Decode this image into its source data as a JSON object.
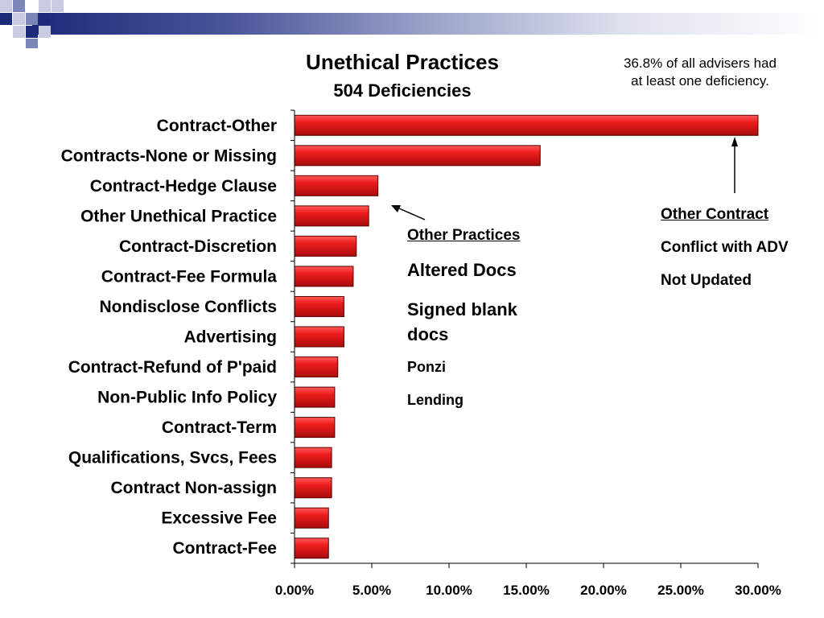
{
  "chart_data": {
    "type": "bar",
    "orientation": "horizontal",
    "title": "Unethical Practices",
    "subtitle": "504 Deficiencies",
    "categories": [
      "Contract-Other",
      "Contracts-None or Missing",
      "Contract-Hedge Clause",
      "Other Unethical Practice",
      "Contract-Discretion",
      "Contract-Fee Formula",
      "Nondisclose Conflicts",
      "Advertising",
      "Contract-Refund of P'paid",
      "Non-Public Info Policy",
      "Contract-Term",
      "Qualifications, Svcs, Fees",
      "Contract Non-assign",
      "Excessive Fee",
      "Contract-Fee"
    ],
    "values": [
      30.0,
      15.9,
      5.4,
      4.8,
      4.0,
      3.8,
      3.2,
      3.2,
      2.8,
      2.6,
      2.6,
      2.4,
      2.4,
      2.2,
      2.2
    ],
    "value_unit": "percent",
    "xlim": [
      0,
      30
    ],
    "xticks": [
      "0.00%",
      "5.00%",
      "10.00%",
      "15.00%",
      "20.00%",
      "25.00%",
      "30.00%"
    ],
    "grid": false,
    "bar_color": "#e8121b",
    "legend": "none"
  },
  "note": {
    "line1": "36.8% of all advisers had",
    "line2": "at least one deficiency."
  },
  "annotations": {
    "other_practices": {
      "heading": "Other Practices",
      "items": [
        "Altered Docs",
        "Signed blank docs",
        "Ponzi",
        "Lending"
      ]
    },
    "other_contract": {
      "heading": "Other Contract",
      "items": [
        "Conflict with ADV",
        "Not Updated"
      ]
    }
  },
  "decoration": {
    "navy": "#1c2a7a",
    "mid": "#7c86b8",
    "light": "#c8cde3"
  }
}
